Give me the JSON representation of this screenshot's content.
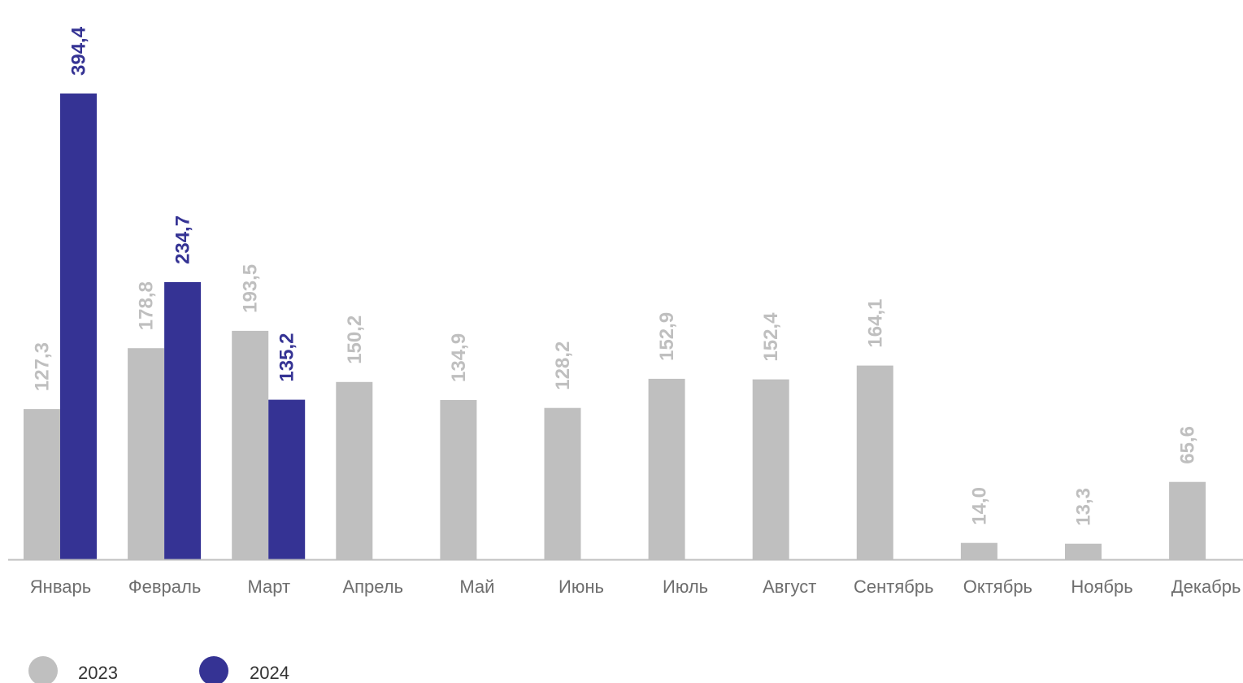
{
  "chart_data": {
    "type": "bar",
    "categories": [
      "Январь",
      "Февраль",
      "Март",
      "Апрель",
      "Май",
      "Июнь",
      "Июль",
      "Август",
      "Сентябрь",
      "Октябрь",
      "Ноябрь",
      "Декабрь"
    ],
    "series": [
      {
        "name": "2023",
        "color": "#bfbfbf",
        "values": [
          127.3,
          178.8,
          193.5,
          150.2,
          134.9,
          128.2,
          152.9,
          152.4,
          164.1,
          14.0,
          13.3,
          65.6
        ],
        "labels": [
          "127,3",
          "178,8",
          "193,5",
          "150,2",
          "134,9",
          "128,2",
          "152,9",
          "152,4",
          "164,1",
          "14,0",
          "13,3",
          "65,6"
        ]
      },
      {
        "name": "2024",
        "color": "#353394",
        "values": [
          394.4,
          234.7,
          135.2,
          null,
          null,
          null,
          null,
          null,
          null,
          null,
          null,
          null
        ],
        "labels": [
          "394,4",
          "234,7",
          "135,2",
          "",
          "",
          "",
          "",
          "",
          "",
          "",
          "",
          ""
        ]
      }
    ],
    "title": "",
    "xlabel": "",
    "ylabel": "",
    "ylim": [
      0,
      400
    ],
    "grid": false,
    "legend_position": "bottom-left",
    "axis_color": "#bfbfbf"
  }
}
